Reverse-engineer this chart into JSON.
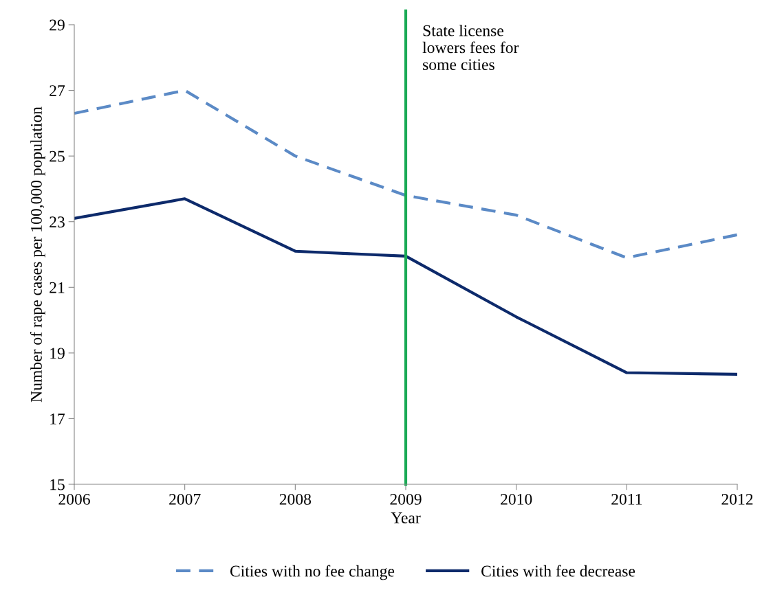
{
  "chart_data": {
    "type": "line",
    "xlabel": "Year",
    "ylabel": "Number of rape cases per 100,000 population",
    "x": [
      2006,
      2007,
      2008,
      2009,
      2010,
      2011,
      2012
    ],
    "series": [
      {
        "name": "Cities with no fee change",
        "color": "#5b8ac6",
        "line_style": "dashed",
        "values": [
          26.3,
          27.0,
          25.0,
          23.8,
          23.2,
          21.9,
          22.6
        ]
      },
      {
        "name": "Cities with fee decrease",
        "color": "#0d2a6b",
        "line_style": "solid",
        "values": [
          23.1,
          23.7,
          22.1,
          21.95,
          20.1,
          18.4,
          18.35
        ]
      }
    ],
    "xlim": [
      2006,
      2012
    ],
    "xticks": [
      2006,
      2007,
      2008,
      2009,
      2010,
      2011,
      2012
    ],
    "ylim": [
      15,
      29
    ],
    "yticks": [
      15,
      17,
      19,
      21,
      23,
      25,
      27,
      29
    ],
    "ref_lines": [
      {
        "axis": "x",
        "value": 2009,
        "label": "State license\nlowers fees for\nsome cities",
        "color": "#1aaa55"
      }
    ],
    "grid": false,
    "legend": "bottom",
    "marker": "none"
  }
}
